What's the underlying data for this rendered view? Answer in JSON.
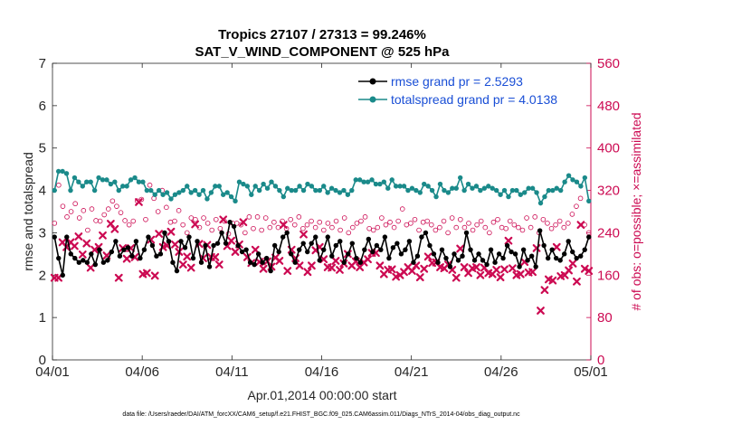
{
  "chart_data": {
    "type": "line",
    "title": "Tropics 27107 / 27313 = 99.246%",
    "subtitle": "SAT_V_WIND_COMPONENT @ 525 hPa",
    "xlabel": "Apr.01,2014 00:00:00 start",
    "ylabel": "rmse and totalspread",
    "ylabel_right": "# of obs: o=possible; ×=assimilated",
    "footnote": "data file: /Users/raeder/DAI/ATM_forcXX/CAM6_setup/f.e21.FHIST_BGC.f09_025.CAM6assim.011/Diags_NTrS_2014-04/obs_diag_output.nc",
    "x_ticks": [
      "04/01",
      "04/06",
      "04/11",
      "04/16",
      "04/21",
      "04/26",
      "05/01"
    ],
    "x_range_days": [
      0,
      30
    ],
    "ylim": [
      0,
      7
    ],
    "y_ticks": [
      "0",
      "1",
      "2",
      "3",
      "4",
      "5",
      "6",
      "7"
    ],
    "ylim_right": [
      0,
      560
    ],
    "y_ticks_right": [
      "0",
      "80",
      "160",
      "240",
      "320",
      "400",
      "480",
      "560"
    ],
    "legend_position": "top-right",
    "colors": {
      "rmse": "#000000",
      "spread": "#1a8a8a",
      "obs": "#cc0a52",
      "legend_text": "#1a4fd6"
    },
    "series": [
      {
        "name": "rmse grand pr = 2.5293",
        "axis": "left",
        "values": [
          2.9,
          2.4,
          2.0,
          2.9,
          2.5,
          2.4,
          2.3,
          2.35,
          2.3,
          2.5,
          2.25,
          2.6,
          2.3,
          2.35,
          2.55,
          2.8,
          2.45,
          2.6,
          2.65,
          2.45,
          2.8,
          2.4,
          2.6,
          2.9,
          2.7,
          2.45,
          2.5,
          3.0,
          2.8,
          2.3,
          2.1,
          2.8,
          2.65,
          2.9,
          2.4,
          2.8,
          2.3,
          2.7,
          2.2,
          2.7,
          2.75,
          3.0,
          2.75,
          3.25,
          3.15,
          2.7,
          2.55,
          2.6,
          2.3,
          2.25,
          2.5,
          2.3,
          2.4,
          2.1,
          2.7,
          2.55,
          2.9,
          3.0,
          2.5,
          2.3,
          2.6,
          2.75,
          2.55,
          2.75,
          2.9,
          2.35,
          2.6,
          2.9,
          2.45,
          2.7,
          2.8,
          2.3,
          2.5,
          2.75,
          2.4,
          2.3,
          2.6,
          2.85,
          2.55,
          2.7,
          2.6,
          2.9,
          2.4,
          2.65,
          2.75,
          2.5,
          2.6,
          2.8,
          2.3,
          2.45,
          2.9,
          3.0,
          2.7,
          2.5,
          2.3,
          2.6,
          2.4,
          2.2,
          2.5,
          2.35,
          2.45,
          3.0,
          2.6,
          2.35,
          2.5,
          2.35,
          2.25,
          2.6,
          2.3,
          2.5,
          2.4,
          2.7,
          2.55,
          2.5,
          2.2,
          2.6,
          2.35,
          2.45,
          2.2,
          3.05,
          2.7,
          2.4,
          2.6,
          2.4,
          2.35,
          2.5,
          2.8,
          2.55,
          2.4,
          2.45,
          2.6,
          2.9
        ],
        "style": "line-dot"
      },
      {
        "name": "totalspread grand pr = 4.0138",
        "axis": "left",
        "values": [
          4.0,
          4.45,
          4.45,
          4.4,
          4.0,
          4.3,
          4.2,
          4.1,
          4.2,
          4.2,
          4.0,
          4.3,
          4.25,
          4.25,
          4.15,
          4.2,
          4.0,
          4.1,
          4.1,
          4.25,
          4.3,
          4.2,
          4.2,
          4.0,
          4.0,
          3.9,
          4.0,
          3.9,
          3.95,
          3.8,
          3.9,
          3.95,
          4.0,
          4.1,
          3.95,
          4.0,
          3.9,
          4.0,
          3.8,
          3.95,
          4.1,
          4.1,
          3.9,
          3.95,
          3.85,
          3.75,
          4.2,
          4.15,
          4.1,
          3.9,
          4.1,
          4.0,
          4.15,
          4.05,
          4.2,
          4.1,
          4.0,
          3.85,
          4.05,
          4.0,
          4.0,
          4.1,
          4.0,
          4.15,
          4.1,
          4.0,
          4.0,
          4.1,
          3.95,
          4.05,
          4.0,
          3.95,
          4.0,
          3.9,
          4.0,
          4.25,
          4.25,
          4.2,
          4.2,
          4.25,
          4.15,
          4.15,
          4.2,
          4.05,
          4.25,
          4.1,
          4.1,
          4.1,
          4.0,
          4.05,
          4.0,
          3.95,
          4.15,
          4.1,
          4.0,
          3.85,
          4.15,
          4.0,
          3.95,
          4.05,
          4.05,
          4.3,
          4.0,
          4.15,
          4.05,
          4.1,
          4.0,
          4.05,
          4.1,
          4.05,
          4.0,
          3.9,
          4.0,
          3.85,
          4.0,
          4.0,
          3.9,
          3.95,
          4.05,
          4.05,
          3.95,
          3.7,
          3.85,
          4.0,
          4.0,
          4.05,
          4.0,
          4.2,
          4.35,
          4.25,
          4.2,
          4.1,
          4.3,
          3.75
        ],
        "style": "line-dot"
      },
      {
        "name": "obs_possible",
        "axis": "right",
        "values": [
          258,
          330,
          290,
          270,
          280,
          295,
          268,
          282,
          245,
          285,
          263,
          262,
          274,
          285,
          300,
          290,
          278,
          263,
          255,
          262,
          300,
          303,
          265,
          330,
          305,
          280,
          320,
          288,
          260,
          262,
          282,
          255,
          240,
          268,
          265,
          250,
          268,
          258,
          245,
          265,
          248,
          262,
          238,
          258,
          258,
          255,
          240,
          270,
          248,
          270,
          245,
          268,
          250,
          260,
          250,
          262,
          248,
          265,
          255,
          270,
          248,
          255,
          262,
          250,
          260,
          245,
          258,
          250,
          262,
          245,
          268,
          240,
          250,
          258,
          262,
          270,
          248,
          245,
          250,
          268,
          255,
          260,
          250,
          262,
          285,
          255,
          258,
          265,
          245,
          260,
          262,
          255,
          245,
          250,
          262,
          240,
          268,
          250,
          265,
          250,
          258,
          245,
          255,
          262,
          250,
          240,
          260,
          265,
          250,
          248,
          262,
          255,
          250,
          245,
          268,
          250,
          270,
          240,
          265,
          258,
          248,
          255,
          262,
          250,
          258,
          275,
          290,
          305,
          255,
          240
        ],
        "style": "circle"
      },
      {
        "name": "obs_assimilated",
        "axis": "right",
        "values": [
          155,
          155,
          222,
          213,
          222,
          215,
          233,
          199,
          220,
          174,
          208,
          213,
          235,
          197,
          257,
          247,
          155,
          211,
          191,
          211,
          194,
          298,
          162,
          164,
          227,
          159,
          238,
          213,
          216,
          242,
          218,
          204,
          180,
          195,
          174,
          256,
          219,
          192,
          217,
          194,
          194,
          180,
          265,
          215,
          225,
          204,
          218,
          260,
          194,
          183,
          208,
          185,
          172,
          186,
          176,
          193,
          187,
          255,
          168,
          208,
          192,
          178,
          237,
          166,
          178,
          207,
          213,
          190,
          175,
          174,
          187,
          170,
          182,
          200,
          178,
          186,
          175,
          184,
          190,
          202,
          202,
          178,
          162,
          170,
          171,
          157,
          160,
          166,
          175,
          168,
          178,
          156,
          172,
          195,
          183,
          184,
          175,
          173,
          180,
          170,
          155,
          210,
          175,
          164,
          173,
          175,
          160,
          174,
          164,
          162,
          170,
          156,
          171,
          225,
          173,
          160,
          162,
          185,
          165,
          166,
          211,
          93,
          132,
          152,
          150,
          213,
          158,
          160,
          169,
          182,
          148,
          255,
          172,
          168
        ],
        "style": "x-marker"
      }
    ]
  }
}
